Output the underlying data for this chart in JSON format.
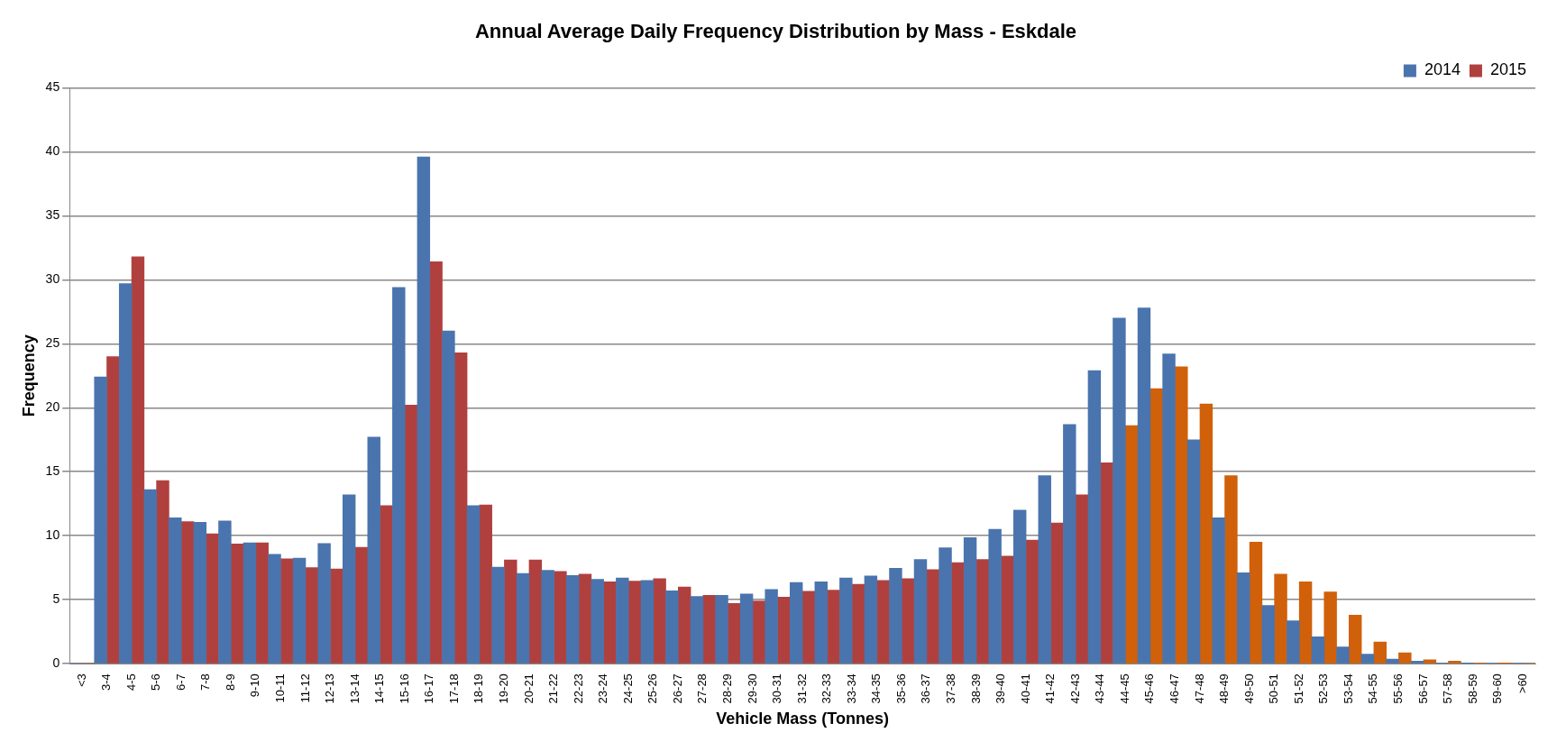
{
  "chart_data": {
    "type": "bar",
    "title": "Annual Average Daily Frequency Distribution by Mass - Eskdale",
    "xlabel": "Vehicle Mass (Tonnes)",
    "ylabel": "Frequency",
    "categories": [
      "<3",
      "3-4",
      "4-5",
      "5-6",
      "6-7",
      "7-8",
      "8-9",
      "9-10",
      "10-11",
      "11-12",
      "12-13",
      "13-14",
      "14-15",
      "15-16",
      "16-17",
      "17-18",
      "18-19",
      "19-20",
      "20-21",
      "21-22",
      "22-23",
      "23-24",
      "24-25",
      "25-26",
      "26-27",
      "27-28",
      "28-29",
      "29-30",
      "30-31",
      "31-32",
      "32-33",
      "33-34",
      "34-35",
      "35-36",
      "36-37",
      "37-38",
      "38-39",
      "39-40",
      "40-41",
      "41-42",
      "42-43",
      "43-44",
      "44-45",
      "45-46",
      "46-47",
      "47-48",
      "48-49",
      "49-50",
      "50-51",
      "51-52",
      "52-53",
      "53-54",
      "54-55",
      "55-56",
      "56-57",
      "57-58",
      "58-59",
      "59-60",
      ">60"
    ],
    "series": [
      {
        "name": "2014",
        "color": "#4a74ad",
        "values": [
          0,
          22.4,
          29.7,
          13.6,
          11.4,
          11.05,
          11.15,
          9.45,
          8.55,
          8.25,
          9.4,
          13.2,
          17.7,
          29.4,
          39.6,
          26.0,
          12.35,
          7.55,
          7.05,
          7.3,
          6.9,
          6.6,
          6.7,
          6.5,
          5.7,
          5.25,
          5.35,
          5.45,
          5.8,
          6.35,
          6.4,
          6.7,
          6.85,
          7.45,
          8.15,
          9.05,
          9.85,
          10.5,
          12.0,
          14.7,
          18.7,
          22.9,
          27.0,
          27.8,
          24.2,
          17.5,
          11.4,
          7.1,
          4.55,
          3.35,
          2.1,
          1.3,
          0.75,
          0.35,
          0.2,
          0.05,
          0.02,
          0,
          0
        ]
      },
      {
        "name": "2015",
        "color": "#b0403e",
        "colors": [
          "#b0403e",
          "#b0403e",
          "#b0403e",
          "#b0403e",
          "#b0403e",
          "#b0403e",
          "#b0403e",
          "#b0403e",
          "#b0403e",
          "#b0403e",
          "#b0403e",
          "#b0403e",
          "#b0403e",
          "#b0403e",
          "#b0403e",
          "#b0403e",
          "#b0403e",
          "#b0403e",
          "#b0403e",
          "#b0403e",
          "#b0403e",
          "#b0403e",
          "#b0403e",
          "#b0403e",
          "#b0403e",
          "#b0403e",
          "#b0403e",
          "#b0403e",
          "#b0403e",
          "#b0403e",
          "#b0403e",
          "#b0403e",
          "#b0403e",
          "#b0403e",
          "#b0403e",
          "#b0403e",
          "#b0403e",
          "#b0403e",
          "#b0403e",
          "#b0403e",
          "#b0403e",
          "#b0403e",
          "#d0600a",
          "#d0600a",
          "#d0600a",
          "#d0600a",
          "#d0600a",
          "#d0600a",
          "#d0600a",
          "#d0600a",
          "#d0600a",
          "#d0600a",
          "#d0600a",
          "#d0600a",
          "#d0600a",
          "#d0600a",
          "#d0600a",
          "#d0600a",
          "#d0600a"
        ],
        "values": [
          0,
          24.0,
          31.8,
          14.3,
          11.1,
          10.15,
          9.35,
          9.45,
          8.2,
          7.5,
          7.4,
          9.1,
          12.35,
          20.2,
          31.4,
          24.3,
          12.4,
          8.1,
          8.1,
          7.2,
          7.0,
          6.4,
          6.45,
          6.65,
          6.0,
          5.35,
          4.7,
          4.9,
          5.2,
          5.65,
          5.75,
          6.2,
          6.5,
          6.65,
          7.35,
          7.9,
          8.15,
          8.4,
          9.65,
          11.0,
          13.2,
          15.7,
          18.6,
          21.5,
          23.2,
          20.3,
          14.7,
          9.5,
          7.0,
          6.4,
          5.6,
          3.8,
          1.7,
          0.85,
          0.3,
          0.2,
          0.05,
          0.02,
          0
        ]
      }
    ],
    "ylim": [
      0,
      45
    ],
    "yticks": [
      0,
      5,
      10,
      15,
      20,
      25,
      30,
      35,
      40,
      45
    ],
    "grid": "y",
    "legend": "top right"
  }
}
